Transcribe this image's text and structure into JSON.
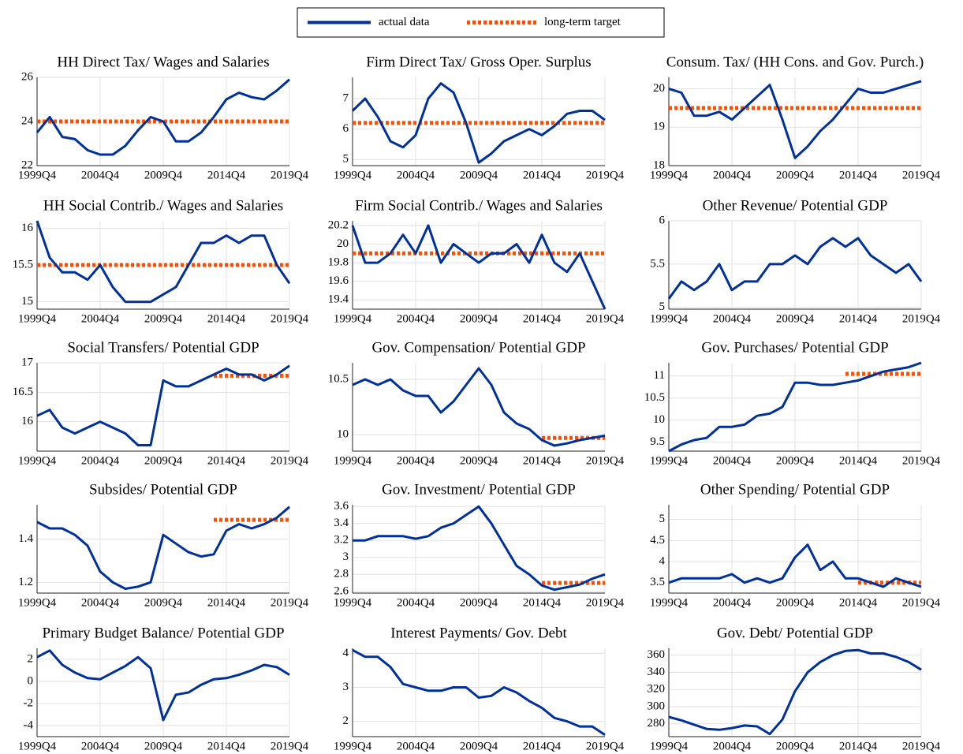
{
  "legend": [
    {
      "name": "actual data",
      "color": "#00309a"
    },
    {
      "name": "long-term target",
      "color": "#ff4e00"
    }
  ],
  "x": [
    "1999Q4",
    "2000Q4",
    "2001Q4",
    "2002Q4",
    "2003Q4",
    "2004Q4",
    "2005Q4",
    "2006Q4",
    "2007Q4",
    "2008Q4",
    "2009Q4",
    "2010Q4",
    "2011Q4",
    "2012Q4",
    "2013Q4",
    "2014Q4",
    "2015Q4",
    "2016Q4",
    "2017Q4",
    "2018Q4",
    "2019Q4"
  ],
  "xlim": [
    "1999Q4",
    "2019Q4"
  ],
  "xticks": [
    "1999Q4",
    "2004Q4",
    "2009Q4",
    "2014Q4",
    "2019Q4"
  ],
  "grid": true,
  "chart_data": [
    {
      "type": "line",
      "title": "HH Direct Tax/ Wages and Salaries",
      "ylim": [
        22,
        26
      ],
      "yticks": [
        22,
        24,
        26
      ],
      "values": [
        23.5,
        24.2,
        23.3,
        23.2,
        22.7,
        22.5,
        22.5,
        22.9,
        23.6,
        24.2,
        24.0,
        23.1,
        23.1,
        23.5,
        24.2,
        25.0,
        25.3,
        25.1,
        25.0,
        25.4,
        25.9
      ],
      "target": [
        24,
        24,
        24,
        24,
        24,
        24,
        24,
        24,
        24,
        24,
        24,
        24,
        24,
        24,
        24,
        24,
        24,
        24,
        24,
        24,
        24
      ]
    },
    {
      "type": "line",
      "title": "Firm Direct Tax/ Gross Oper. Surplus",
      "ylim": [
        4.8,
        7.7
      ],
      "yticks": [
        5,
        6,
        7
      ],
      "values": [
        6.6,
        7.0,
        6.4,
        5.6,
        5.4,
        5.8,
        7.0,
        7.5,
        7.2,
        6.2,
        4.9,
        5.2,
        5.6,
        5.8,
        6.0,
        5.8,
        6.1,
        6.5,
        6.6,
        6.6,
        6.3
      ],
      "target": [
        6.2,
        6.2,
        6.2,
        6.2,
        6.2,
        6.2,
        6.2,
        6.2,
        6.2,
        6.2,
        6.2,
        6.2,
        6.2,
        6.2,
        6.2,
        6.2,
        6.2,
        6.2,
        6.2,
        6.2,
        6.2
      ]
    },
    {
      "type": "line",
      "title": "Consum. Tax/ (HH Cons. and Gov. Purch.)",
      "ylim": [
        18,
        20.3
      ],
      "yticks": [
        18,
        19,
        20
      ],
      "values": [
        20.0,
        19.9,
        19.3,
        19.3,
        19.4,
        19.2,
        19.5,
        19.8,
        20.1,
        19.2,
        18.2,
        18.5,
        18.9,
        19.2,
        19.6,
        20.0,
        19.9,
        19.9,
        20.0,
        20.1,
        20.2
      ],
      "target": [
        19.5,
        19.5,
        19.5,
        19.5,
        19.5,
        19.5,
        19.5,
        19.5,
        19.5,
        19.5,
        19.5,
        19.5,
        19.5,
        19.5,
        19.5,
        19.5,
        19.5,
        19.5,
        19.5,
        19.5,
        19.5
      ]
    },
    {
      "type": "line",
      "title": "HH Social Contrib./ Wages and Salaries",
      "ylim": [
        14.9,
        16.1
      ],
      "yticks": [
        15,
        15.5,
        16
      ],
      "values": [
        16.1,
        15.6,
        15.4,
        15.4,
        15.3,
        15.5,
        15.2,
        15.0,
        15.0,
        15.0,
        15.1,
        15.2,
        15.5,
        15.8,
        15.8,
        15.9,
        15.8,
        15.9,
        15.9,
        15.5,
        15.25
      ],
      "target": [
        15.5,
        15.5,
        15.5,
        15.5,
        15.5,
        15.5,
        15.5,
        15.5,
        15.5,
        15.5,
        15.5,
        15.5,
        15.5,
        15.5,
        15.5,
        15.5,
        15.5,
        15.5,
        15.5,
        15.5,
        15.5
      ]
    },
    {
      "type": "line",
      "title": "Firm Social Contrib./ Wages and Salaries",
      "ylim": [
        19.3,
        20.25
      ],
      "yticks": [
        19.4,
        19.6,
        19.8,
        20,
        20.2
      ],
      "values": [
        20.2,
        19.8,
        19.8,
        19.9,
        20.1,
        19.9,
        20.2,
        19.8,
        20.0,
        19.9,
        19.8,
        19.9,
        19.9,
        20.0,
        19.8,
        20.1,
        19.8,
        19.7,
        19.9,
        19.6,
        19.3
      ],
      "target": [
        19.9,
        19.9,
        19.9,
        19.9,
        19.9,
        19.9,
        19.9,
        19.9,
        19.9,
        19.9,
        19.9,
        19.9,
        19.9,
        19.9,
        19.9,
        19.9,
        19.9,
        19.9,
        19.9,
        19.9,
        19.9
      ]
    },
    {
      "type": "line",
      "title": "Other Revenue/ Potential GDP",
      "ylim": [
        4.98,
        6
      ],
      "yticks": [
        5,
        5.5,
        6
      ],
      "values": [
        5.1,
        5.3,
        5.2,
        5.3,
        5.5,
        5.2,
        5.3,
        5.3,
        5.5,
        5.5,
        5.6,
        5.5,
        5.7,
        5.8,
        5.7,
        5.8,
        5.6,
        5.5,
        5.4,
        5.5,
        5.3
      ]
    },
    {
      "type": "line",
      "title": "Social Transfers/ Potential GDP",
      "ylim": [
        15.5,
        17
      ],
      "yticks": [
        16,
        16.5,
        17
      ],
      "values": [
        16.1,
        16.2,
        15.9,
        15.8,
        15.9,
        16.0,
        15.9,
        15.8,
        15.6,
        15.6,
        16.7,
        16.6,
        16.6,
        16.7,
        16.8,
        16.9,
        16.8,
        16.8,
        16.7,
        16.8,
        16.95
      ],
      "target": [
        null,
        null,
        null,
        null,
        null,
        null,
        null,
        null,
        null,
        null,
        null,
        null,
        null,
        null,
        16.78,
        16.78,
        16.78,
        16.78,
        16.78,
        16.78,
        16.78
      ]
    },
    {
      "type": "line",
      "title": "Gov. Compensation/ Potential GDP",
      "ylim": [
        9.85,
        10.65
      ],
      "yticks": [
        10,
        10.5
      ],
      "values": [
        10.45,
        10.5,
        10.45,
        10.5,
        10.4,
        10.35,
        10.35,
        10.2,
        10.3,
        10.45,
        10.6,
        10.45,
        10.2,
        10.1,
        10.05,
        9.95,
        9.9,
        9.92,
        9.95,
        9.97,
        9.99
      ],
      "target": [
        null,
        null,
        null,
        null,
        null,
        null,
        null,
        null,
        null,
        null,
        null,
        null,
        null,
        null,
        null,
        9.97,
        9.97,
        9.97,
        9.97,
        9.97,
        9.97
      ]
    },
    {
      "type": "line",
      "title": "Gov. Purchases/ Potential GDP",
      "ylim": [
        9.3,
        11.3
      ],
      "yticks": [
        9.5,
        10,
        10.5,
        11
      ],
      "values": [
        9.3,
        9.45,
        9.55,
        9.6,
        9.85,
        9.85,
        9.9,
        10.1,
        10.15,
        10.3,
        10.85,
        10.85,
        10.8,
        10.8,
        10.85,
        10.9,
        11.0,
        11.1,
        11.15,
        11.2,
        11.3
      ],
      "target": [
        null,
        null,
        null,
        null,
        null,
        null,
        null,
        null,
        null,
        null,
        null,
        null,
        null,
        null,
        11.05,
        11.05,
        11.05,
        11.05,
        11.05,
        11.05,
        11.05
      ]
    },
    {
      "type": "line",
      "title": "Subsides/ Potential GDP",
      "ylim": [
        1.15,
        1.56
      ],
      "yticks": [
        1.2,
        1.4
      ],
      "values": [
        1.48,
        1.45,
        1.45,
        1.42,
        1.37,
        1.25,
        1.2,
        1.17,
        1.18,
        1.2,
        1.42,
        1.38,
        1.34,
        1.32,
        1.33,
        1.44,
        1.47,
        1.45,
        1.47,
        1.5,
        1.55
      ],
      "target": [
        null,
        null,
        null,
        null,
        null,
        null,
        null,
        null,
        null,
        null,
        null,
        null,
        null,
        null,
        1.49,
        1.49,
        1.49,
        1.49,
        1.49,
        1.49,
        1.49
      ]
    },
    {
      "type": "line",
      "title": "Gov. Investment/ Potential GDP",
      "ylim": [
        2.58,
        3.62
      ],
      "yticks": [
        2.6,
        2.8,
        3,
        3.2,
        3.4,
        3.6
      ],
      "values": [
        3.2,
        3.2,
        3.25,
        3.25,
        3.25,
        3.22,
        3.25,
        3.35,
        3.4,
        3.5,
        3.6,
        3.4,
        3.15,
        2.9,
        2.8,
        2.67,
        2.62,
        2.65,
        2.68,
        2.75,
        2.8
      ],
      "target": [
        null,
        null,
        null,
        null,
        null,
        null,
        null,
        null,
        null,
        null,
        null,
        null,
        null,
        null,
        null,
        2.7,
        2.7,
        2.7,
        2.7,
        2.7,
        2.7
      ]
    },
    {
      "type": "line",
      "title": "Other Spending/ Potential GDP",
      "ylim": [
        3.25,
        5.35
      ],
      "yticks": [
        3.5,
        4,
        4.5,
        5
      ],
      "values": [
        3.5,
        3.6,
        3.6,
        3.6,
        3.6,
        3.7,
        3.5,
        3.6,
        3.5,
        3.6,
        4.1,
        4.4,
        3.8,
        4.0,
        3.6,
        3.6,
        3.5,
        3.4,
        3.6,
        3.5,
        3.4
      ],
      "target": [
        null,
        null,
        null,
        null,
        null,
        null,
        null,
        null,
        null,
        null,
        null,
        null,
        null,
        null,
        null,
        3.5,
        3.5,
        3.5,
        3.5,
        3.5,
        3.5
      ]
    },
    {
      "type": "line",
      "title": "Primary Budget Balance/ Potential GDP",
      "ylim": [
        -5,
        3
      ],
      "yticks": [
        -4,
        -2,
        0,
        2
      ],
      "values": [
        2.2,
        2.8,
        1.5,
        0.8,
        0.3,
        0.2,
        0.8,
        1.4,
        2.2,
        1.2,
        -3.5,
        -1.2,
        -1.0,
        -0.3,
        0.2,
        0.3,
        0.6,
        1.0,
        1.5,
        1.3,
        0.6
      ]
    },
    {
      "type": "line",
      "title": "Interest Payments/ Gov. Debt",
      "ylim": [
        1.55,
        4.15
      ],
      "yticks": [
        2,
        3,
        4
      ],
      "values": [
        4.1,
        3.9,
        3.9,
        3.6,
        3.1,
        3.0,
        2.9,
        2.9,
        3.0,
        3.0,
        2.7,
        2.75,
        3.0,
        2.85,
        2.6,
        2.4,
        2.1,
        2.0,
        1.85,
        1.85,
        1.6
      ]
    },
    {
      "type": "line",
      "title": "Gov. Debt/ Potential GDP",
      "ylim": [
        265,
        368
      ],
      "yticks": [
        280,
        300,
        320,
        340,
        360
      ],
      "values": [
        288,
        284,
        279,
        274,
        273,
        275,
        278,
        277,
        268,
        285,
        318,
        340,
        352,
        360,
        365,
        366,
        362,
        362,
        358,
        352,
        343
      ]
    }
  ]
}
